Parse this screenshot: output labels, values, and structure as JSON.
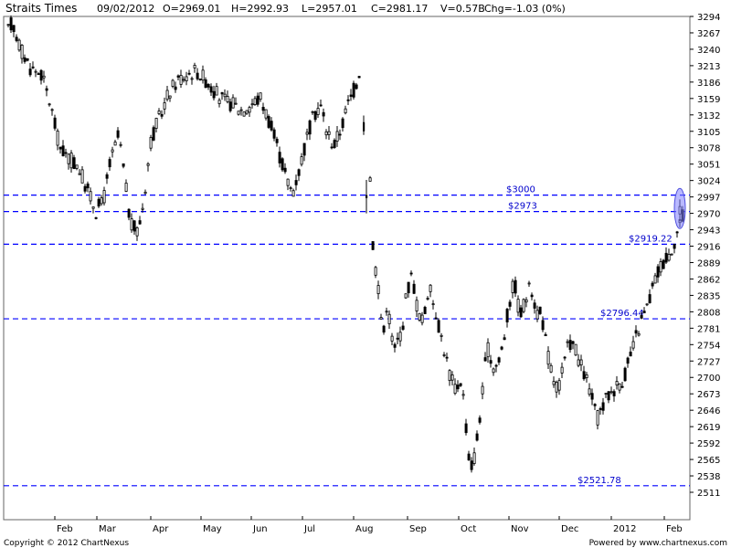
{
  "header": {
    "title": "Straits Times",
    "date": "09/02/2012",
    "open": "O=2969.01",
    "high": "H=2992.93",
    "low": "L=2957.01",
    "close": "C=2981.17",
    "volume": "V=0.57B",
    "change": "Chg=-1.03 (0%)"
  },
  "footer": {
    "copyright": "Copyright © 2012 ChartNexus",
    "powered": "Powered by www.chartnexus.com"
  },
  "colors": {
    "candle": "#000000",
    "level_line": "#0000ff",
    "level_label": "#0000cc",
    "highlight": "#8080ff"
  },
  "chart_data": {
    "type": "candlestick",
    "title": "Straits Times",
    "ylim": [
      2500,
      3294
    ],
    "y_ticks": [
      "3294",
      "3267",
      "3240",
      "3213",
      "3186",
      "3159",
      "3132",
      "3105",
      "3078",
      "3051",
      "3024",
      "2997",
      "2970",
      "2943",
      "2916",
      "2889",
      "2862",
      "2835",
      "2808",
      "2781",
      "2754",
      "2727",
      "2700",
      "2673",
      "2646",
      "2619",
      "2592",
      "2565",
      "2538",
      "2511"
    ],
    "x_ticks": [
      "Feb",
      "Mar",
      "Apr",
      "May",
      "Jun",
      "Jul",
      "Aug",
      "Sep",
      "Oct",
      "Nov",
      "Dec",
      "2012",
      "Feb"
    ],
    "grid": false,
    "levels": [
      {
        "value": 3000,
        "label": "$3000"
      },
      {
        "value": 2973,
        "label": "$2973"
      },
      {
        "value": 2919.22,
        "label": "$2919.22"
      },
      {
        "value": 2796.44,
        "label": "$2796.44"
      },
      {
        "value": 2521.78,
        "label": "$2521.78"
      }
    ],
    "price_path": [
      [
        0,
        3255
      ],
      [
        8,
        3285
      ],
      [
        18,
        3240
      ],
      [
        28,
        3210
      ],
      [
        40,
        3200
      ],
      [
        50,
        3150
      ],
      [
        60,
        3080
      ],
      [
        70,
        3060
      ],
      [
        80,
        3050
      ],
      [
        90,
        3010
      ],
      [
        100,
        2975
      ],
      [
        108,
        2990
      ],
      [
        115,
        3050
      ],
      [
        125,
        3100
      ],
      [
        132,
        3020
      ],
      [
        138,
        2950
      ],
      [
        146,
        2940
      ],
      [
        152,
        2990
      ],
      [
        160,
        3090
      ],
      [
        170,
        3130
      ],
      [
        180,
        3170
      ],
      [
        190,
        3190
      ],
      [
        200,
        3200
      ],
      [
        210,
        3205
      ],
      [
        220,
        3190
      ],
      [
        230,
        3170
      ],
      [
        240,
        3155
      ],
      [
        250,
        3150
      ],
      [
        260,
        3140
      ],
      [
        270,
        3150
      ],
      [
        280,
        3160
      ],
      [
        290,
        3120
      ],
      [
        300,
        3070
      ],
      [
        310,
        3020
      ],
      [
        315,
        3005
      ],
      [
        322,
        3040
      ],
      [
        330,
        3090
      ],
      [
        338,
        3130
      ],
      [
        345,
        3150
      ],
      [
        352,
        3110
      ],
      [
        360,
        3080
      ],
      [
        368,
        3110
      ],
      [
        376,
        3150
      ],
      [
        384,
        3180
      ],
      [
        390,
        3215
      ],
      [
        394,
        3190
      ],
      [
        397,
        3120
      ],
      [
        401,
        3000
      ],
      [
        403,
        2920
      ],
      [
        406,
        2880
      ],
      [
        410,
        2840
      ],
      [
        414,
        2760
      ],
      [
        418,
        2820
      ],
      [
        422,
        2790
      ],
      [
        426,
        2740
      ],
      [
        430,
        2760
      ],
      [
        435,
        2780
      ],
      [
        440,
        2840
      ],
      [
        446,
        2870
      ],
      [
        452,
        2810
      ],
      [
        458,
        2790
      ],
      [
        464,
        2850
      ],
      [
        470,
        2820
      ],
      [
        476,
        2780
      ],
      [
        482,
        2740
      ],
      [
        488,
        2700
      ],
      [
        494,
        2680
      ],
      [
        500,
        2700
      ],
      [
        505,
        2620
      ],
      [
        509,
        2550
      ],
      [
        513,
        2560
      ],
      [
        517,
        2600
      ],
      [
        522,
        2660
      ],
      [
        528,
        2750
      ],
      [
        534,
        2720
      ],
      [
        540,
        2720
      ],
      [
        546,
        2760
      ],
      [
        552,
        2820
      ],
      [
        558,
        2860
      ],
      [
        564,
        2800
      ],
      [
        570,
        2830
      ],
      [
        576,
        2850
      ],
      [
        582,
        2810
      ],
      [
        588,
        2800
      ],
      [
        594,
        2740
      ],
      [
        600,
        2700
      ],
      [
        606,
        2680
      ],
      [
        612,
        2720
      ],
      [
        618,
        2760
      ],
      [
        624,
        2750
      ],
      [
        630,
        2720
      ],
      [
        636,
        2700
      ],
      [
        642,
        2670
      ],
      [
        648,
        2630
      ],
      [
        654,
        2650
      ],
      [
        660,
        2670
      ],
      [
        666,
        2680
      ],
      [
        672,
        2690
      ],
      [
        678,
        2700
      ],
      [
        684,
        2730
      ],
      [
        690,
        2760
      ],
      [
        696,
        2790
      ],
      [
        702,
        2810
      ],
      [
        708,
        2840
      ],
      [
        714,
        2870
      ],
      [
        720,
        2890
      ],
      [
        726,
        2900
      ],
      [
        732,
        2920
      ],
      [
        738,
        2950
      ],
      [
        742,
        2965
      ],
      [
        746,
        2981
      ]
    ],
    "gap_candles": [
      {
        "x": 398,
        "open": 3120,
        "close": 3105,
        "high": 3131,
        "low": 3099
      },
      {
        "x": 401,
        "open": 3000,
        "close": 2995,
        "high": 3025,
        "low": 2970
      }
    ],
    "latest": {
      "date": "09/02/2012",
      "open": 2969.01,
      "high": 2992.93,
      "low": 2957.01,
      "close": 2981.17,
      "volume": "0.57B",
      "change": "-1.03 (0%)"
    }
  }
}
